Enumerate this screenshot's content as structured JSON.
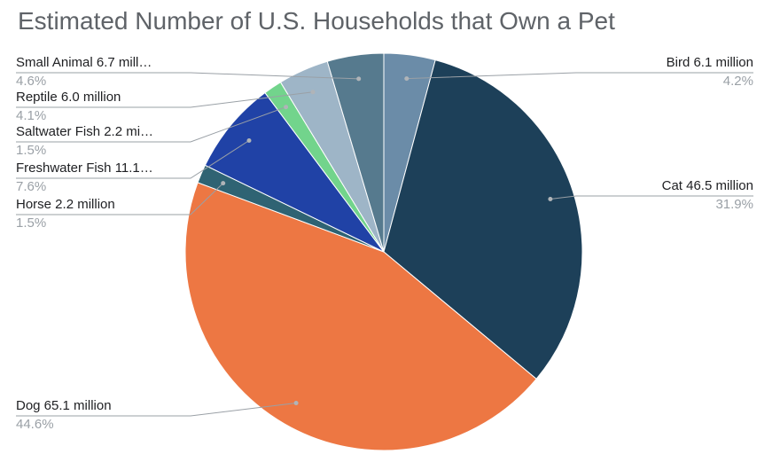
{
  "chart_data": {
    "type": "pie",
    "title": "Estimated Number of U.S. Households that Own a Pet",
    "slices": [
      {
        "name": "Bird 6.1 million",
        "value": 6.1,
        "percent_label": "4.2%",
        "color": "#6b8ca8"
      },
      {
        "name": "Cat 46.5 million",
        "value": 46.5,
        "percent_label": "31.9%",
        "color": "#1d4059"
      },
      {
        "name": "Dog 65.1 million",
        "value": 65.1,
        "percent_label": "44.6%",
        "color": "#ed7743"
      },
      {
        "name": "Horse 2.2 million",
        "value": 2.2,
        "percent_label": "1.5%",
        "color": "#2f6373"
      },
      {
        "name": "Freshwater Fish 11.1…",
        "value": 11.1,
        "percent_label": "7.6%",
        "color": "#2042a6"
      },
      {
        "name": "Saltwater Fish 2.2 mi…",
        "value": 2.2,
        "percent_label": "1.5%",
        "color": "#72d48c"
      },
      {
        "name": "Reptile 6.0 million",
        "value": 6.0,
        "percent_label": "4.1%",
        "color": "#9eb5c7"
      },
      {
        "name": "Small Animal 6.7 mill…",
        "value": 6.7,
        "percent_label": "4.6%",
        "color": "#567a8e"
      }
    ]
  }
}
